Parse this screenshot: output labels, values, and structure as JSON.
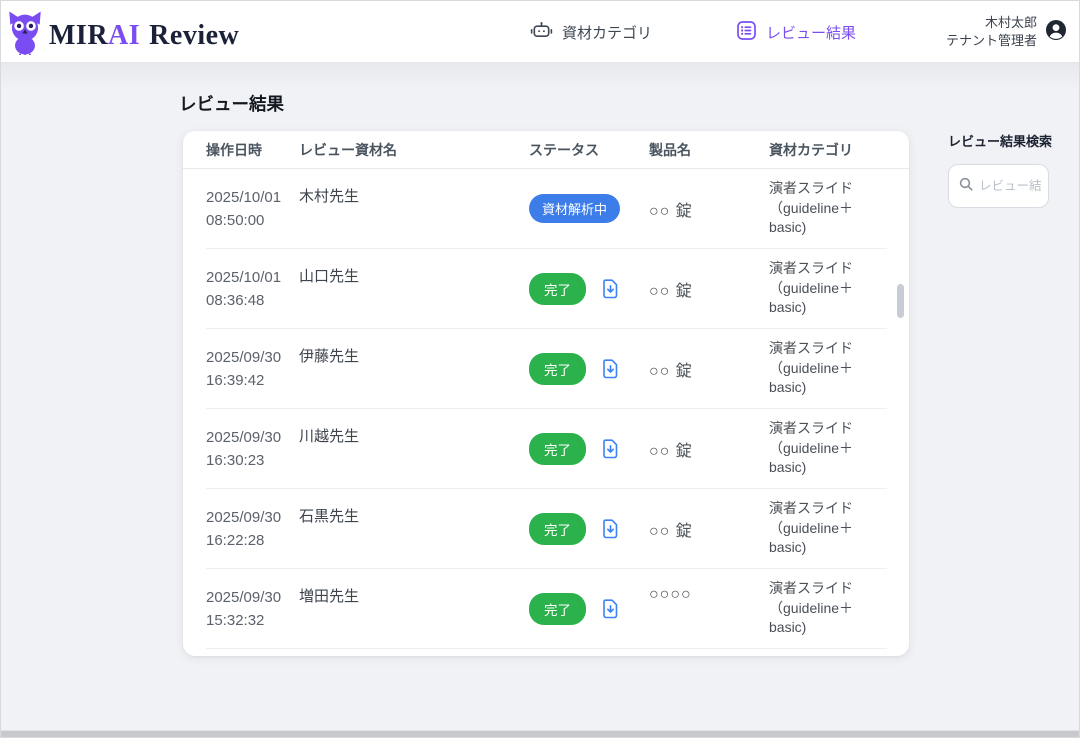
{
  "brand": {
    "part1": "MIR",
    "part2": "AI",
    "part3": "Review"
  },
  "header": {
    "nav": [
      {
        "label": "資材カテゴリ",
        "icon": "robot-icon",
        "active": false
      },
      {
        "label": "レビュー結果",
        "icon": "list-icon",
        "active": true
      }
    ],
    "user": {
      "name": "木村太郎",
      "role": "テナント管理者"
    }
  },
  "page": {
    "title": "レビュー結果"
  },
  "table": {
    "columns": [
      "操作日時",
      "レビュー資材名",
      "ステータス",
      "製品名",
      "資材カテゴリ"
    ],
    "rows": [
      {
        "date": "2025/10/01",
        "time": "08:50:00",
        "name": "木村先生",
        "status": {
          "label": "資材解析中",
          "type": "processing"
        },
        "download": false,
        "product": "○○ 錠",
        "category_lines": [
          "演者スライド",
          "（guideline＋",
          "basic)"
        ]
      },
      {
        "date": "2025/10/01",
        "time": "08:36:48",
        "name": "山口先生",
        "status": {
          "label": "完了",
          "type": "done"
        },
        "download": true,
        "product": "○○ 錠",
        "category_lines": [
          "演者スライド",
          "（guideline＋",
          "basic)"
        ]
      },
      {
        "date": "2025/09/30",
        "time": "16:39:42",
        "name": "伊藤先生",
        "status": {
          "label": "完了",
          "type": "done"
        },
        "download": true,
        "product": "○○ 錠",
        "category_lines": [
          "演者スライド",
          "（guideline＋",
          "basic)"
        ]
      },
      {
        "date": "2025/09/30",
        "time": "16:30:23",
        "name": "川越先生",
        "status": {
          "label": "完了",
          "type": "done"
        },
        "download": true,
        "product": "○○ 錠",
        "category_lines": [
          "演者スライド",
          "（guideline＋",
          "basic)"
        ]
      },
      {
        "date": "2025/09/30",
        "time": "16:22:28",
        "name": "石黒先生",
        "status": {
          "label": "完了",
          "type": "done"
        },
        "download": true,
        "product": "○○ 錠",
        "category_lines": [
          "演者スライド",
          "（guideline＋",
          "basic)"
        ]
      },
      {
        "date": "2025/09/30",
        "time": "15:32:32",
        "name": "増田先生",
        "status": {
          "label": "完了",
          "type": "done"
        },
        "download": true,
        "product": "○○○○",
        "category_lines": [
          "演者スライド",
          "（guideline＋",
          "basic)"
        ]
      }
    ]
  },
  "search": {
    "label": "レビュー結果検索",
    "placeholder": "レビュー結果検索"
  },
  "colors": {
    "accent": "#7a4df2",
    "status_processing": "#3d7de9",
    "status_done": "#2bb24c",
    "download_icon": "#3b82f6"
  }
}
